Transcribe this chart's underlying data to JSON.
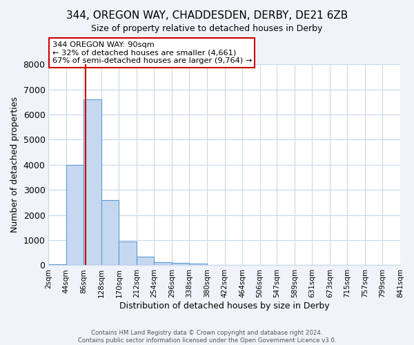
{
  "title": "344, OREGON WAY, CHADDESDEN, DERBY, DE21 6ZB",
  "subtitle": "Size of property relative to detached houses in Derby",
  "xlabel": "Distribution of detached houses by size in Derby",
  "ylabel": "Number of detached properties",
  "bin_edges": [
    2,
    44,
    86,
    128,
    170,
    212,
    254,
    296,
    338,
    380,
    422,
    464,
    506,
    547,
    589,
    631,
    673,
    715,
    757,
    799,
    841
  ],
  "bin_counts": [
    50,
    4000,
    6600,
    2600,
    950,
    330,
    130,
    100,
    60,
    0,
    0,
    0,
    0,
    0,
    0,
    0,
    0,
    0,
    0,
    0
  ],
  "bar_color": "#c5d8f0",
  "bar_edge_color": "#5b9bd5",
  "marker_value": 90,
  "marker_color": "#cc0000",
  "ylim": [
    0,
    8000
  ],
  "yticks": [
    0,
    1000,
    2000,
    3000,
    4000,
    5000,
    6000,
    7000,
    8000
  ],
  "annotation_text": "344 OREGON WAY: 90sqm\n← 32% of detached houses are smaller (4,661)\n67% of semi-detached houses are larger (9,764) →",
  "annotation_box_color": "#ffffff",
  "annotation_box_edge_color": "#cc0000",
  "footer_line1": "Contains HM Land Registry data © Crown copyright and database right 2024.",
  "footer_line2": "Contains public sector information licensed under the Open Government Licence v3.0.",
  "plot_bg_color": "#ffffff",
  "fig_bg_color": "#f0f4fa",
  "grid_color": "#c8d8ea",
  "tick_label_size": 7.5,
  "title_fontsize": 11,
  "subtitle_fontsize": 9
}
